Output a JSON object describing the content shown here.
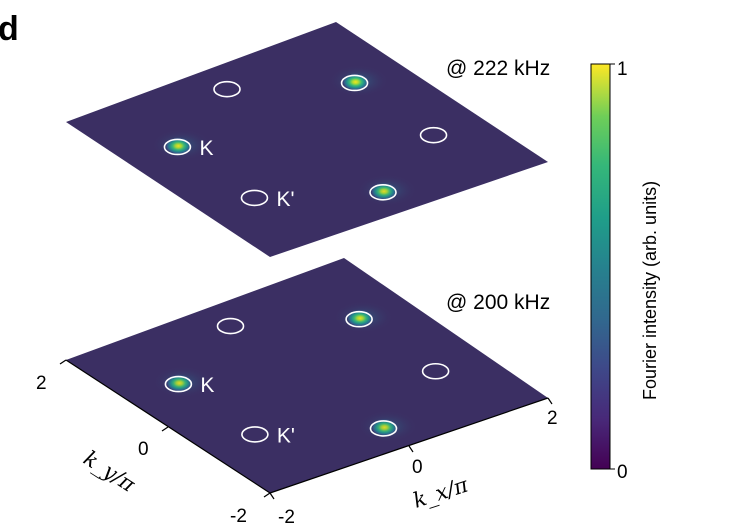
{
  "panel_letter": "d",
  "chart_data": {
    "type": "heatmap",
    "title": "",
    "xlabel": "k_x/π",
    "ylabel": "k_y/π",
    "xlim": [
      -2,
      2
    ],
    "ylim": [
      -2,
      2
    ],
    "x_tick_labels": [
      "-2",
      "0",
      "2"
    ],
    "y_tick_labels": [
      "-2",
      "0",
      "2"
    ],
    "colorbar": {
      "label": "Fourier intensity (arb. units)",
      "min": 0,
      "max": 1,
      "tick_labels": [
        "0",
        "1"
      ],
      "colormap": "viridis"
    },
    "valley_labels": {
      "K": "K",
      "Kp": "K'"
    },
    "panels": [
      {
        "frequency_label": "@ 222 kHz",
        "K_points": [
          {
            "kx": 1.3,
            "ky": 0.75,
            "intensity": 1.0
          },
          {
            "kx": -1.3,
            "ky": 0.75,
            "intensity": 0.95
          },
          {
            "kx": 0.0,
            "ky": -1.5,
            "intensity": 0.92
          }
        ],
        "Kprime_points": [
          {
            "kx": 0.0,
            "ky": 1.5,
            "intensity": 0.0
          },
          {
            "kx": 1.3,
            "ky": -0.75,
            "intensity": 0.0
          },
          {
            "kx": -1.3,
            "ky": -0.75,
            "intensity": 0.0
          }
        ]
      },
      {
        "frequency_label": "@ 200 kHz",
        "K_points": [
          {
            "kx": 1.3,
            "ky": 0.75,
            "intensity": 0.95
          },
          {
            "kx": -1.3,
            "ky": 0.75,
            "intensity": 0.9
          },
          {
            "kx": 0.0,
            "ky": -1.5,
            "intensity": 0.9
          }
        ],
        "Kprime_points": [
          {
            "kx": 0.0,
            "ky": 1.5,
            "intensity": 0.0
          },
          {
            "kx": 1.3,
            "ky": -0.75,
            "intensity": 0.0
          },
          {
            "kx": -1.3,
            "ky": -0.75,
            "intensity": 0.0
          }
        ]
      }
    ]
  }
}
